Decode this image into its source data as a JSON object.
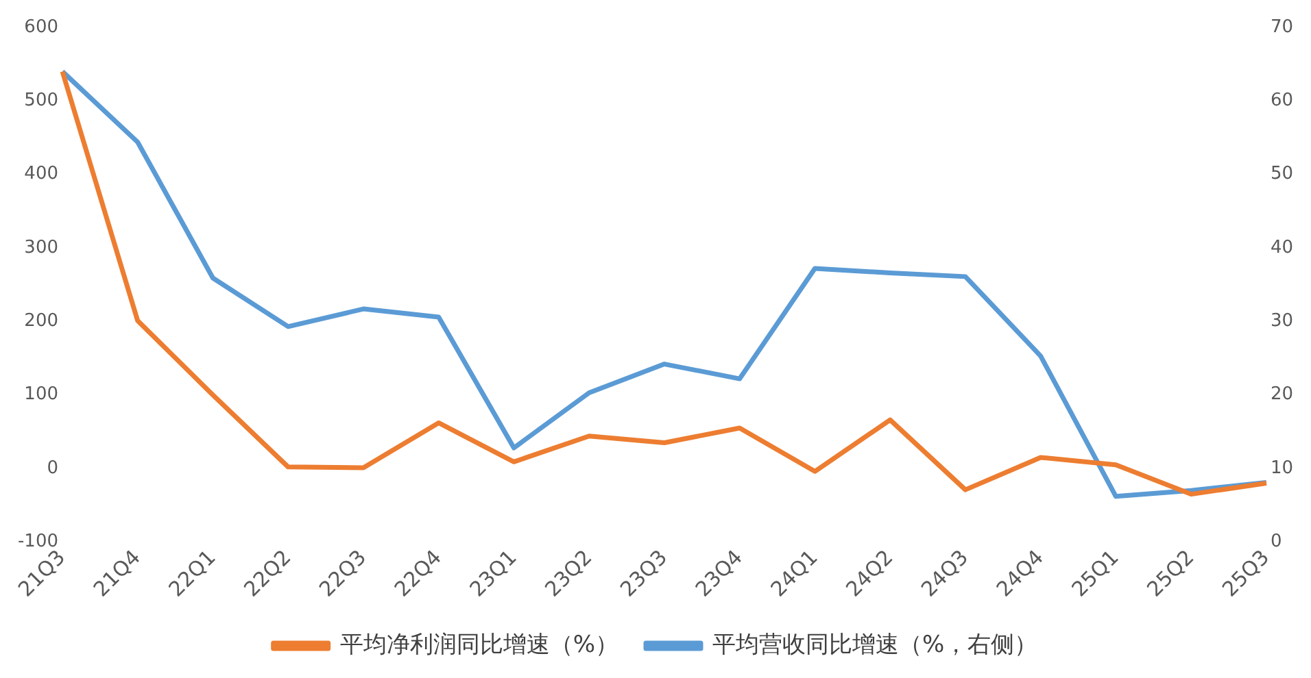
{
  "chart_data": {
    "type": "line",
    "categories": [
      "21Q3",
      "21Q4",
      "22Q1",
      "22Q2",
      "22Q3",
      "22Q4",
      "23Q1",
      "23Q2",
      "23Q3",
      "23Q4",
      "24Q1",
      "24Q2",
      "24Q3",
      "24Q4",
      "25Q1",
      "25Q2",
      "25Q3"
    ],
    "series": [
      {
        "name": "平均净利润同比增速（%）",
        "color": "#ed7d31",
        "values": [
          540,
          201,
          100,
          2,
          1,
          62,
          9,
          44,
          35,
          55,
          -4,
          66,
          -29,
          15,
          5,
          -35,
          -20
        ]
      },
      {
        "name": "平均营收同比增速（%，右侧）",
        "color": "#5b9bd5",
        "axis": "y2",
        "values": [
          64,
          54.4,
          35.9,
          29.3,
          31.7,
          30.6,
          12.8,
          20.3,
          24.2,
          22.2,
          37.2,
          36.6,
          36.1,
          25.3,
          6.2,
          7,
          8.1
        ]
      }
    ],
    "ylim": [
      -100,
      600
    ],
    "yticks": [
      -100,
      0,
      100,
      200,
      300,
      400,
      500,
      600
    ],
    "y2lim": [
      0,
      70
    ],
    "y2ticks": [
      0,
      10,
      20,
      30,
      40,
      50,
      60,
      70
    ],
    "grid": false,
    "legend": "bottom",
    "marker": "none",
    "line_style": "solid"
  }
}
